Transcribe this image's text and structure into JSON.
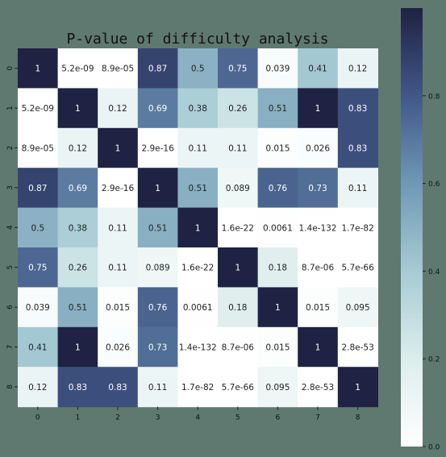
{
  "chart_data": {
    "type": "heatmap",
    "title": "P-value of difficulty analysis",
    "xlabel": "",
    "ylabel": "",
    "x_categories": [
      "0",
      "1",
      "2",
      "3",
      "4",
      "5",
      "6",
      "7",
      "8"
    ],
    "y_categories": [
      "0",
      "1",
      "2",
      "3",
      "4",
      "5",
      "6",
      "7",
      "8"
    ],
    "values": [
      [
        1,
        5.2e-09,
        8.9e-05,
        0.87,
        0.5,
        0.75,
        0.039,
        0.41,
        0.12
      ],
      [
        5.2e-09,
        1,
        0.12,
        0.69,
        0.38,
        0.26,
        0.51,
        1,
        0.83
      ],
      [
        8.9e-05,
        0.12,
        1,
        2.9e-16,
        0.11,
        0.11,
        0.015,
        0.026,
        0.83
      ],
      [
        0.87,
        0.69,
        2.9e-16,
        1,
        0.51,
        0.089,
        0.76,
        0.73,
        0.11
      ],
      [
        0.5,
        0.38,
        0.11,
        0.51,
        1,
        1.6e-22,
        0.0061,
        1.4e-132,
        1.7e-82
      ],
      [
        0.75,
        0.26,
        0.11,
        0.089,
        1.6e-22,
        1,
        0.18,
        8.7e-06,
        5.7e-66
      ],
      [
        0.039,
        0.51,
        0.015,
        0.76,
        0.0061,
        0.18,
        1,
        0.015,
        0.095
      ],
      [
        0.41,
        1,
        0.026,
        0.73,
        1.4e-132,
        8.7e-06,
        0.015,
        1,
        2.8e-53
      ],
      [
        0.12,
        0.83,
        0.83,
        0.11,
        1.7e-82,
        5.7e-66,
        0.095,
        2.8e-53,
        1
      ]
    ],
    "labels": [
      [
        "1",
        "5.2e-09",
        "8.9e-05",
        "0.87",
        "0.5",
        "0.75",
        "0.039",
        "0.41",
        "0.12"
      ],
      [
        "5.2e-09",
        "1",
        "0.12",
        "0.69",
        "0.38",
        "0.26",
        "0.51",
        "1",
        "0.83"
      ],
      [
        "8.9e-05",
        "0.12",
        "1",
        "2.9e-16",
        "0.11",
        "0.11",
        "0.015",
        "0.026",
        "0.83"
      ],
      [
        "0.87",
        "0.69",
        "2.9e-16",
        "1",
        "0.51",
        "0.089",
        "0.76",
        "0.73",
        "0.11"
      ],
      [
        "0.5",
        "0.38",
        "0.11",
        "0.51",
        "1",
        "1.6e-22",
        "0.0061",
        "1.4e-132",
        "1.7e-82"
      ],
      [
        "0.75",
        "0.26",
        "0.11",
        "0.089",
        "1.6e-22",
        "1",
        "0.18",
        "8.7e-06",
        "5.7e-66"
      ],
      [
        "0.039",
        "0.51",
        "0.015",
        "0.76",
        "0.0061",
        "0.18",
        "1",
        "0.015",
        "0.095"
      ],
      [
        "0.41",
        "1",
        "0.026",
        "0.73",
        "1.4e-132",
        "8.7e-06",
        "0.015",
        "1",
        "2.8e-53"
      ],
      [
        "0.12",
        "0.83",
        "0.83",
        "0.11",
        "1.7e-82",
        "5.7e-66",
        "0.095",
        "2.8e-53",
        "1"
      ]
    ],
    "value_range": [
      0,
      1
    ],
    "colorbar": {
      "ticks": [
        0.0,
        0.2,
        0.4,
        0.6,
        0.8
      ],
      "tick_labels": [
        "0.0",
        "0.2",
        "0.4",
        "0.6",
        "0.8"
      ],
      "colors": [
        "#ffffff",
        "#dcedec",
        "#a7cad3",
        "#7098b5",
        "#415786",
        "#1f2242"
      ]
    },
    "grid": false,
    "background_color": "#5f7970"
  }
}
